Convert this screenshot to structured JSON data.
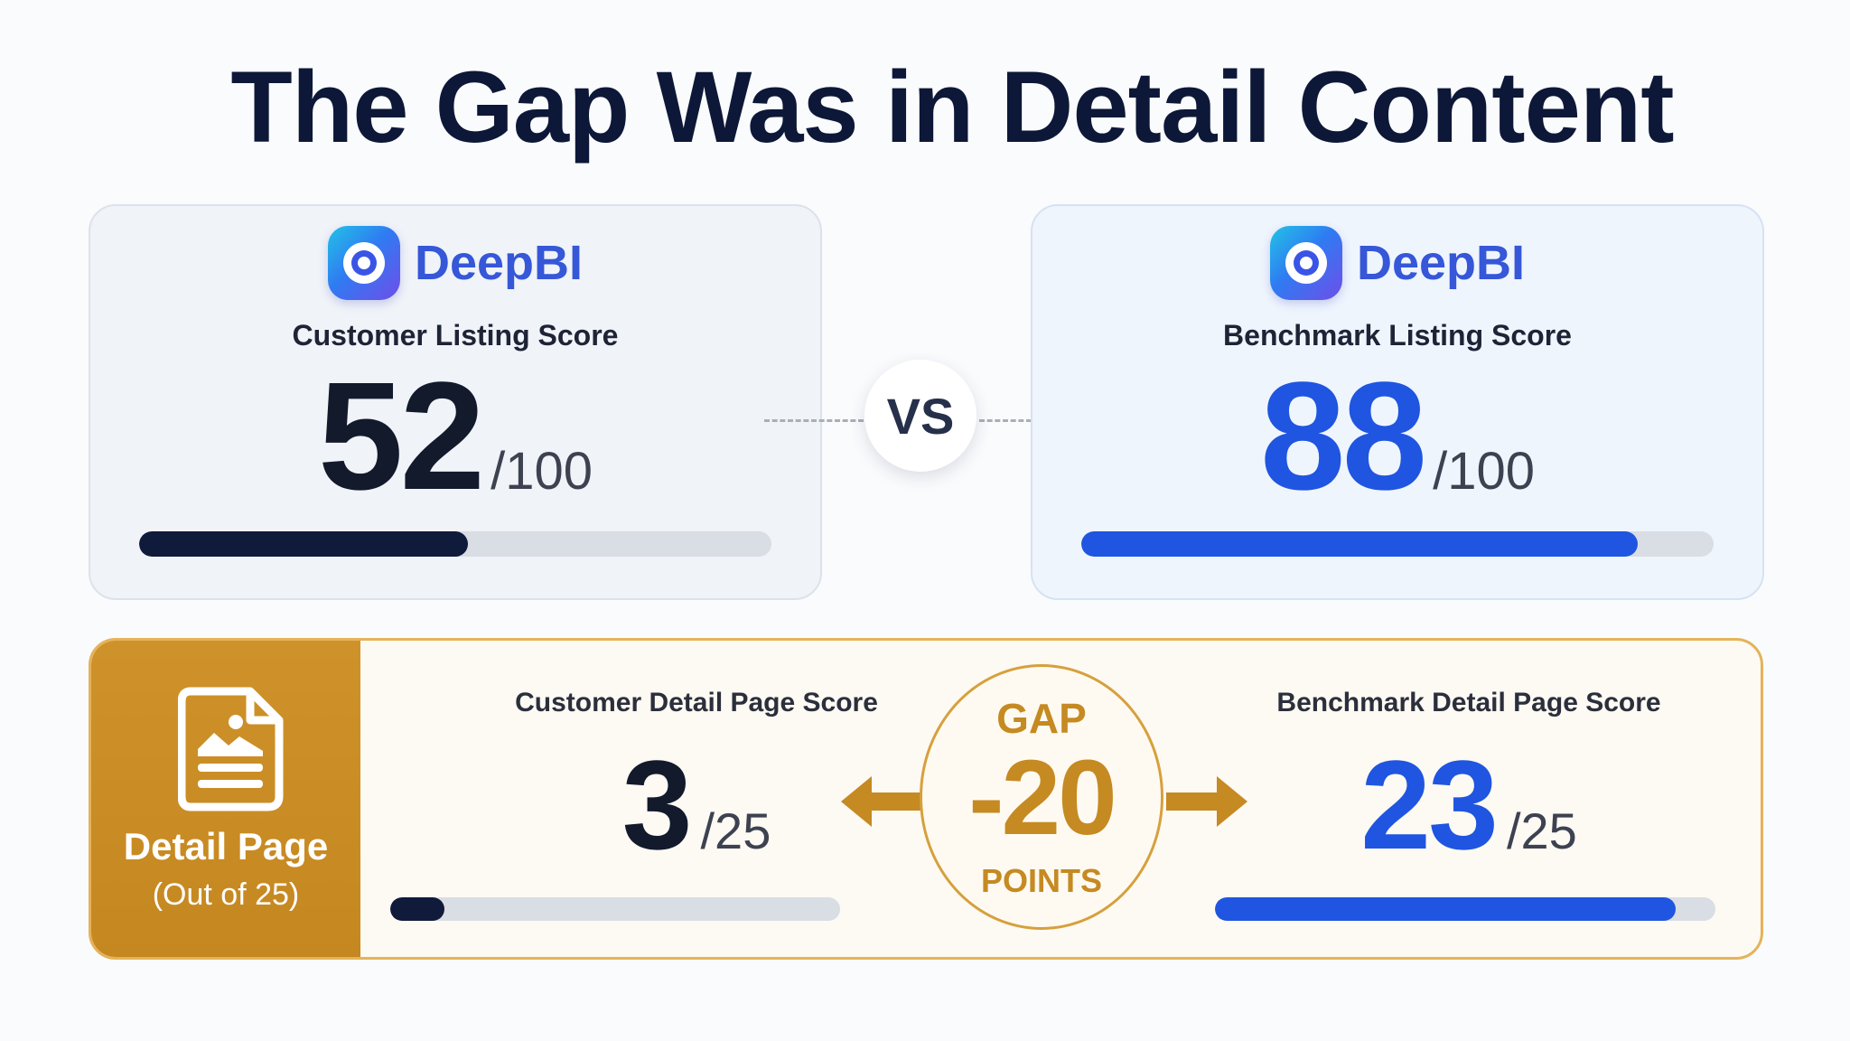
{
  "title": "The Gap Was in Detail Content",
  "vs_label": "VS",
  "customer_card": {
    "brand": "DeepBI",
    "logo_icon": "deepbi-logo-icon",
    "label": "Customer Listing Score",
    "score": "52",
    "denominator": "/100",
    "progress_fraction": 0.52,
    "bar_color": "#101a3a"
  },
  "benchmark_card": {
    "brand": "DeepBI",
    "logo_icon": "deepbi-logo-icon",
    "label": "Benchmark Listing Score",
    "score": "88",
    "denominator": "/100",
    "progress_fraction": 0.88,
    "bar_color": "#1f55e0"
  },
  "detail": {
    "icon": "document-image-icon",
    "title": "Detail Page",
    "subtitle": "(Out of 25)",
    "customer": {
      "label": "Customer Detail Page Score",
      "score": "3",
      "denominator": "/25",
      "progress_fraction": 0.12
    },
    "benchmark": {
      "label": "Benchmark Detail Page Score",
      "score": "23",
      "denominator": "/25",
      "progress_fraction": 0.92
    },
    "gap": {
      "word": "GAP",
      "value": "-20",
      "unit": "POINTS"
    },
    "accent_color": "#c58a22"
  }
}
